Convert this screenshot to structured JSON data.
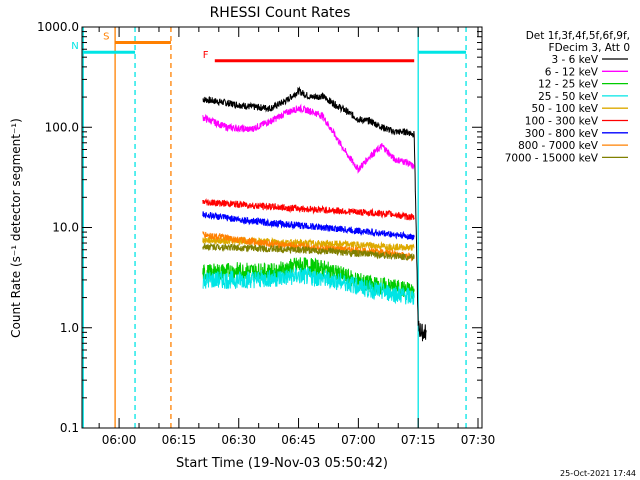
{
  "chart_data": {
    "type": "line",
    "title": "RHESSI Count Rates",
    "xlabel": "Start Time (19-Nov-03 05:50:42)",
    "ylabel": "Count Rate (s⁻¹ detector segment⁻¹)",
    "y_scale": "log",
    "ylim": [
      0.1,
      1000
    ],
    "xlim": [
      "05:50:42",
      "07:31:00"
    ],
    "x_ticks": [
      "06:00",
      "06:15",
      "06:30",
      "06:45",
      "07:00",
      "07:15",
      "07:30"
    ],
    "y_ticks": [
      "0.1",
      "1.0",
      "10.0",
      "100.0",
      "1000.0"
    ],
    "grid": false,
    "legend_header": [
      "Det 1f,3f,4f,5f,6f,9f,",
      "FDecim 3, Att 0"
    ],
    "legend_position": "top-right, outside plot",
    "series": [
      {
        "name": "3 - 6 keV",
        "color": "#000000",
        "x": [
          "06:21",
          "06:27",
          "06:33",
          "06:38",
          "06:42",
          "06:45",
          "06:48",
          "06:51",
          "06:54",
          "06:57",
          "07:00",
          "07:03",
          "07:06",
          "07:09",
          "07:12",
          "07:14",
          "07:15",
          "07:16",
          "07:17"
        ],
        "y": [
          190,
          175,
          160,
          155,
          185,
          230,
          200,
          205,
          170,
          145,
          120,
          115,
          100,
          90,
          90,
          85,
          1.0,
          0.9,
          0.9
        ]
      },
      {
        "name": "6 - 12 keV",
        "color": "#ff00ff",
        "x": [
          "06:21",
          "06:27",
          "06:33",
          "06:38",
          "06:42",
          "06:45",
          "06:48",
          "06:51",
          "06:54",
          "06:57",
          "07:00",
          "07:03",
          "07:06",
          "07:09",
          "07:12",
          "07:14"
        ],
        "y": [
          125,
          100,
          95,
          115,
          140,
          155,
          145,
          130,
          85,
          55,
          38,
          52,
          65,
          48,
          45,
          40
        ]
      },
      {
        "name": "12 - 25 keV",
        "color": "#00cc00",
        "x": [
          "06:21",
          "06:30",
          "06:39",
          "06:45",
          "06:51",
          "06:57",
          "07:03",
          "07:09",
          "07:14"
        ],
        "y": [
          3.5,
          3.7,
          3.6,
          4.2,
          3.9,
          3.2,
          2.7,
          2.5,
          2.3
        ]
      },
      {
        "name": "25 - 50 keV",
        "color": "#00e5e5",
        "x": [
          "06:21",
          "06:30",
          "06:39",
          "06:45",
          "06:51",
          "06:57",
          "07:03",
          "07:09",
          "07:14"
        ],
        "y": [
          3.0,
          3.0,
          3.1,
          3.3,
          3.1,
          2.8,
          2.4,
          2.2,
          2.0
        ]
      },
      {
        "name": "50 - 100 keV",
        "color": "#ddaa00",
        "x": [
          "06:21",
          "06:30",
          "06:39",
          "06:45",
          "06:51",
          "06:57",
          "07:03",
          "07:09",
          "07:14"
        ],
        "y": [
          7.5,
          7.3,
          7.2,
          7.0,
          6.9,
          6.8,
          6.6,
          6.4,
          6.3
        ]
      },
      {
        "name": "100 - 300 keV",
        "color": "#ff0000",
        "x": [
          "06:21",
          "06:30",
          "06:39",
          "06:45",
          "06:51",
          "06:57",
          "07:03",
          "07:09",
          "07:14"
        ],
        "y": [
          18,
          17,
          16,
          15.5,
          15,
          14.5,
          14,
          13.5,
          12.5
        ]
      },
      {
        "name": "300 - 800 keV",
        "color": "#0000ff",
        "x": [
          "06:21",
          "06:30",
          "06:39",
          "06:45",
          "06:51",
          "06:57",
          "07:03",
          "07:09",
          "07:14"
        ],
        "y": [
          13.5,
          12,
          11,
          10.5,
          10,
          9.5,
          9,
          8.5,
          8
        ]
      },
      {
        "name": "800 - 7000 keV",
        "color": "#ff8000",
        "x": [
          "06:21",
          "06:30",
          "06:39",
          "06:45",
          "06:51",
          "06:57",
          "07:03",
          "07:09",
          "07:14"
        ],
        "y": [
          8.5,
          7.5,
          6.8,
          6.5,
          6.2,
          6.0,
          5.8,
          5.5,
          5.0
        ]
      },
      {
        "name": "7000 - 15000 keV",
        "color": "#808000",
        "x": [
          "06:21",
          "06:30",
          "06:39",
          "06:45",
          "06:51",
          "06:57",
          "07:03",
          "07:09",
          "07:14"
        ],
        "y": [
          6.5,
          6.3,
          6.1,
          6.0,
          5.8,
          5.6,
          5.4,
          5.2,
          5.0
        ]
      }
    ],
    "flags": [
      {
        "label": "S",
        "color": "#ff8000",
        "start": "05:59",
        "end": "06:13",
        "level": 700
      },
      {
        "label": "N",
        "color": "#00e5e5",
        "start": "05:51",
        "end": "06:04",
        "level": 560
      },
      {
        "label": "N",
        "color": "#00e5e5",
        "start": "07:15",
        "end": "07:27",
        "level": 560,
        "label_hidden": true
      },
      {
        "label": "F",
        "color": "#ff0000",
        "start": "06:24",
        "end": "07:14",
        "level": 460
      }
    ],
    "vertical_markers": [
      {
        "time": "05:51",
        "color": "#00e5e5",
        "style": "solid"
      },
      {
        "time": "05:59",
        "color": "#ff8000",
        "style": "solid"
      },
      {
        "time": "06:04",
        "color": "#00e5e5",
        "style": "dashed"
      },
      {
        "time": "06:13",
        "color": "#ff8000",
        "style": "dashed"
      },
      {
        "time": "07:15",
        "color": "#00e5e5",
        "style": "solid"
      },
      {
        "time": "07:27",
        "color": "#00e5e5",
        "style": "dashed"
      }
    ],
    "timestamp": "25-Oct-2021 17:44"
  }
}
